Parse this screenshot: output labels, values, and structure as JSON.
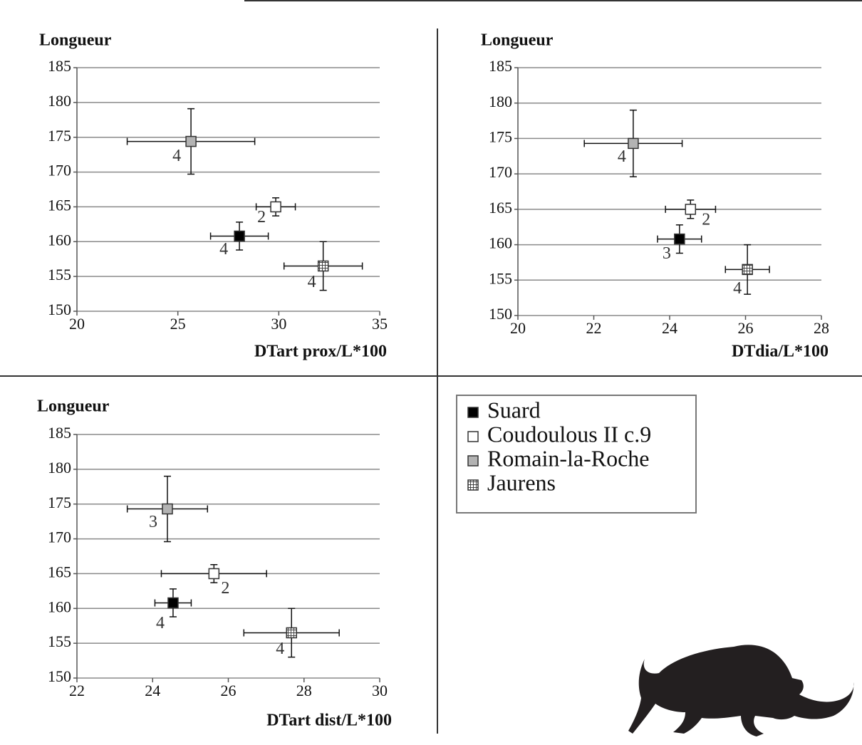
{
  "chart_data": [
    {
      "type": "scatter",
      "title": "Longueur",
      "x_label": "DTart prox/L*100",
      "xlim": [
        20,
        35
      ],
      "xticks": [
        20,
        25,
        30,
        35
      ],
      "ylim": [
        150,
        185
      ],
      "yticks": [
        150,
        155,
        160,
        165,
        170,
        175,
        180,
        185
      ],
      "grid": true,
      "series": [
        {
          "name": "Suard",
          "color": "#000000",
          "x": [
            28.05
          ],
          "xerr": [
            1.43
          ],
          "values": [
            160.8
          ],
          "yerr": [
            2.0
          ],
          "n": [
            "4"
          ]
        },
        {
          "name": "Coudoulous II c.9",
          "color": "#ffffff",
          "x": [
            29.85
          ],
          "xerr": [
            0.97
          ],
          "values": [
            165.0
          ],
          "yerr": [
            1.3
          ],
          "n": [
            "2"
          ]
        },
        {
          "name": "Romain-la-Roche",
          "color": "#b3b3b3",
          "x": [
            25.65
          ],
          "xerr": [
            3.16
          ],
          "values": [
            174.4
          ],
          "yerr": [
            4.7
          ],
          "n": [
            "4"
          ]
        },
        {
          "name": "Jaurens",
          "color": "#ffffff",
          "hatch": "grid",
          "x": [
            32.2
          ],
          "xerr": [
            1.94
          ],
          "values": [
            156.5
          ],
          "yerr": [
            3.5
          ],
          "n": [
            "4"
          ]
        }
      ]
    },
    {
      "type": "scatter",
      "title": "Longueur",
      "x_label": "DTdia/L*100",
      "xlim": [
        20,
        28
      ],
      "xticks": [
        20,
        22,
        24,
        26,
        28
      ],
      "ylim": [
        150,
        185
      ],
      "yticks": [
        150,
        155,
        160,
        165,
        170,
        175,
        180,
        185
      ],
      "grid": true,
      "series": [
        {
          "name": "Suard",
          "color": "#000000",
          "x": [
            24.26
          ],
          "xerr": [
            0.58
          ],
          "values": [
            160.8
          ],
          "yerr": [
            2.0
          ],
          "n": [
            "3"
          ]
        },
        {
          "name": "Coudoulous II c.9",
          "color": "#ffffff",
          "x": [
            24.55
          ],
          "xerr": [
            0.66
          ],
          "values": [
            165.0
          ],
          "yerr": [
            1.3
          ],
          "n": [
            "2"
          ]
        },
        {
          "name": "Romain-la-Roche",
          "color": "#b3b3b3",
          "x": [
            23.04
          ],
          "xerr": [
            1.29
          ],
          "values": [
            174.3
          ],
          "yerr": [
            4.7
          ],
          "n": [
            "4"
          ]
        },
        {
          "name": "Jaurens",
          "color": "#ffffff",
          "hatch": "grid",
          "x": [
            26.05
          ],
          "xerr": [
            0.58
          ],
          "values": [
            156.5
          ],
          "yerr": [
            3.5
          ],
          "n": [
            "4"
          ]
        }
      ]
    },
    {
      "type": "scatter",
      "title": "Longueur",
      "x_label": "DTart dist/L*100",
      "xlim": [
        22,
        30
      ],
      "xticks": [
        22,
        24,
        26,
        28,
        30
      ],
      "ylim": [
        150,
        185
      ],
      "yticks": [
        150,
        155,
        160,
        165,
        170,
        175,
        180,
        185
      ],
      "grid": true,
      "series": [
        {
          "name": "Suard",
          "color": "#000000",
          "x": [
            24.54
          ],
          "xerr": [
            0.48
          ],
          "values": [
            160.8
          ],
          "yerr": [
            2.0
          ],
          "n": [
            "4"
          ]
        },
        {
          "name": "Coudoulous II c.9",
          "color": "#ffffff",
          "x": [
            25.62
          ],
          "xerr": [
            1.39
          ],
          "values": [
            165.0
          ],
          "yerr": [
            1.3
          ],
          "n": [
            "2"
          ]
        },
        {
          "name": "Romain-la-Roche",
          "color": "#b3b3b3",
          "x": [
            24.39
          ],
          "xerr": [
            1.06
          ],
          "values": [
            174.3
          ],
          "yerr": [
            4.7
          ],
          "n": [
            "3"
          ]
        },
        {
          "name": "Jaurens",
          "color": "#ffffff",
          "hatch": "grid",
          "x": [
            27.67
          ],
          "xerr": [
            1.26
          ],
          "values": [
            156.5
          ],
          "yerr": [
            3.5
          ],
          "n": [
            "4"
          ]
        }
      ]
    }
  ]
}
